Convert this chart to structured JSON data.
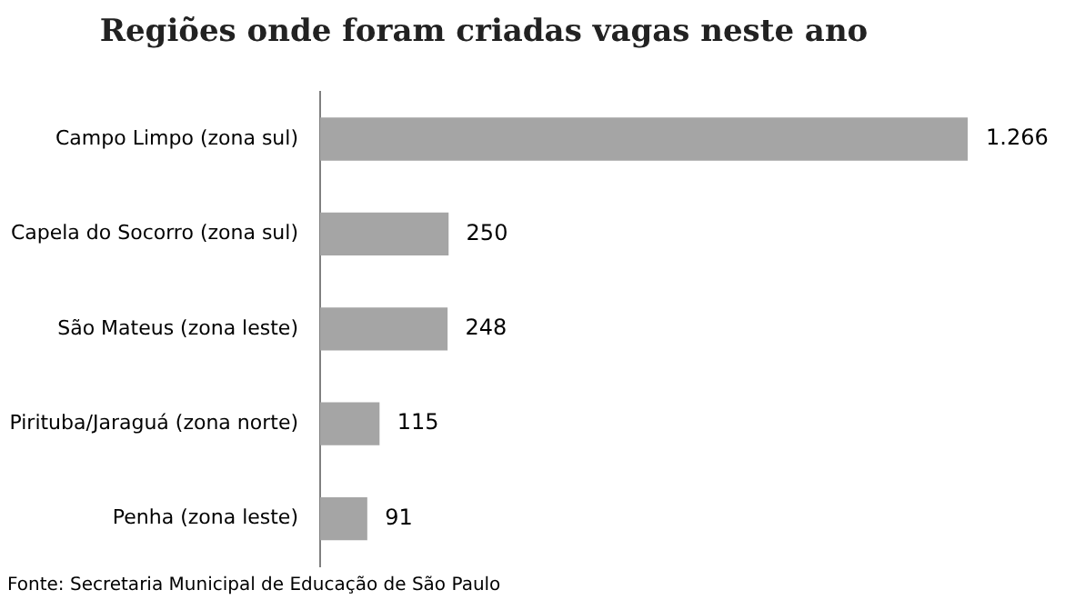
{
  "chart_data": {
    "type": "bar",
    "orientation": "horizontal",
    "title": "Regiões onde foram criadas vagas neste ano",
    "categories": [
      "Campo Limpo (zona sul)",
      "Capela do Socorro (zona sul)",
      "São Mateus (zona leste)",
      "Pirituba/Jaraguá (zona norte)",
      "Penha (zona leste)"
    ],
    "values": [
      1266,
      250,
      248,
      115,
      91
    ],
    "value_labels": [
      "1.266",
      "250",
      "248",
      "115",
      "91"
    ],
    "color": "#a5a5a5",
    "grid": false,
    "legend": false,
    "tick_labels": "y",
    "annotations": [
      "Fonte: Secretaria Municipal de Educação de São Paulo"
    ]
  }
}
